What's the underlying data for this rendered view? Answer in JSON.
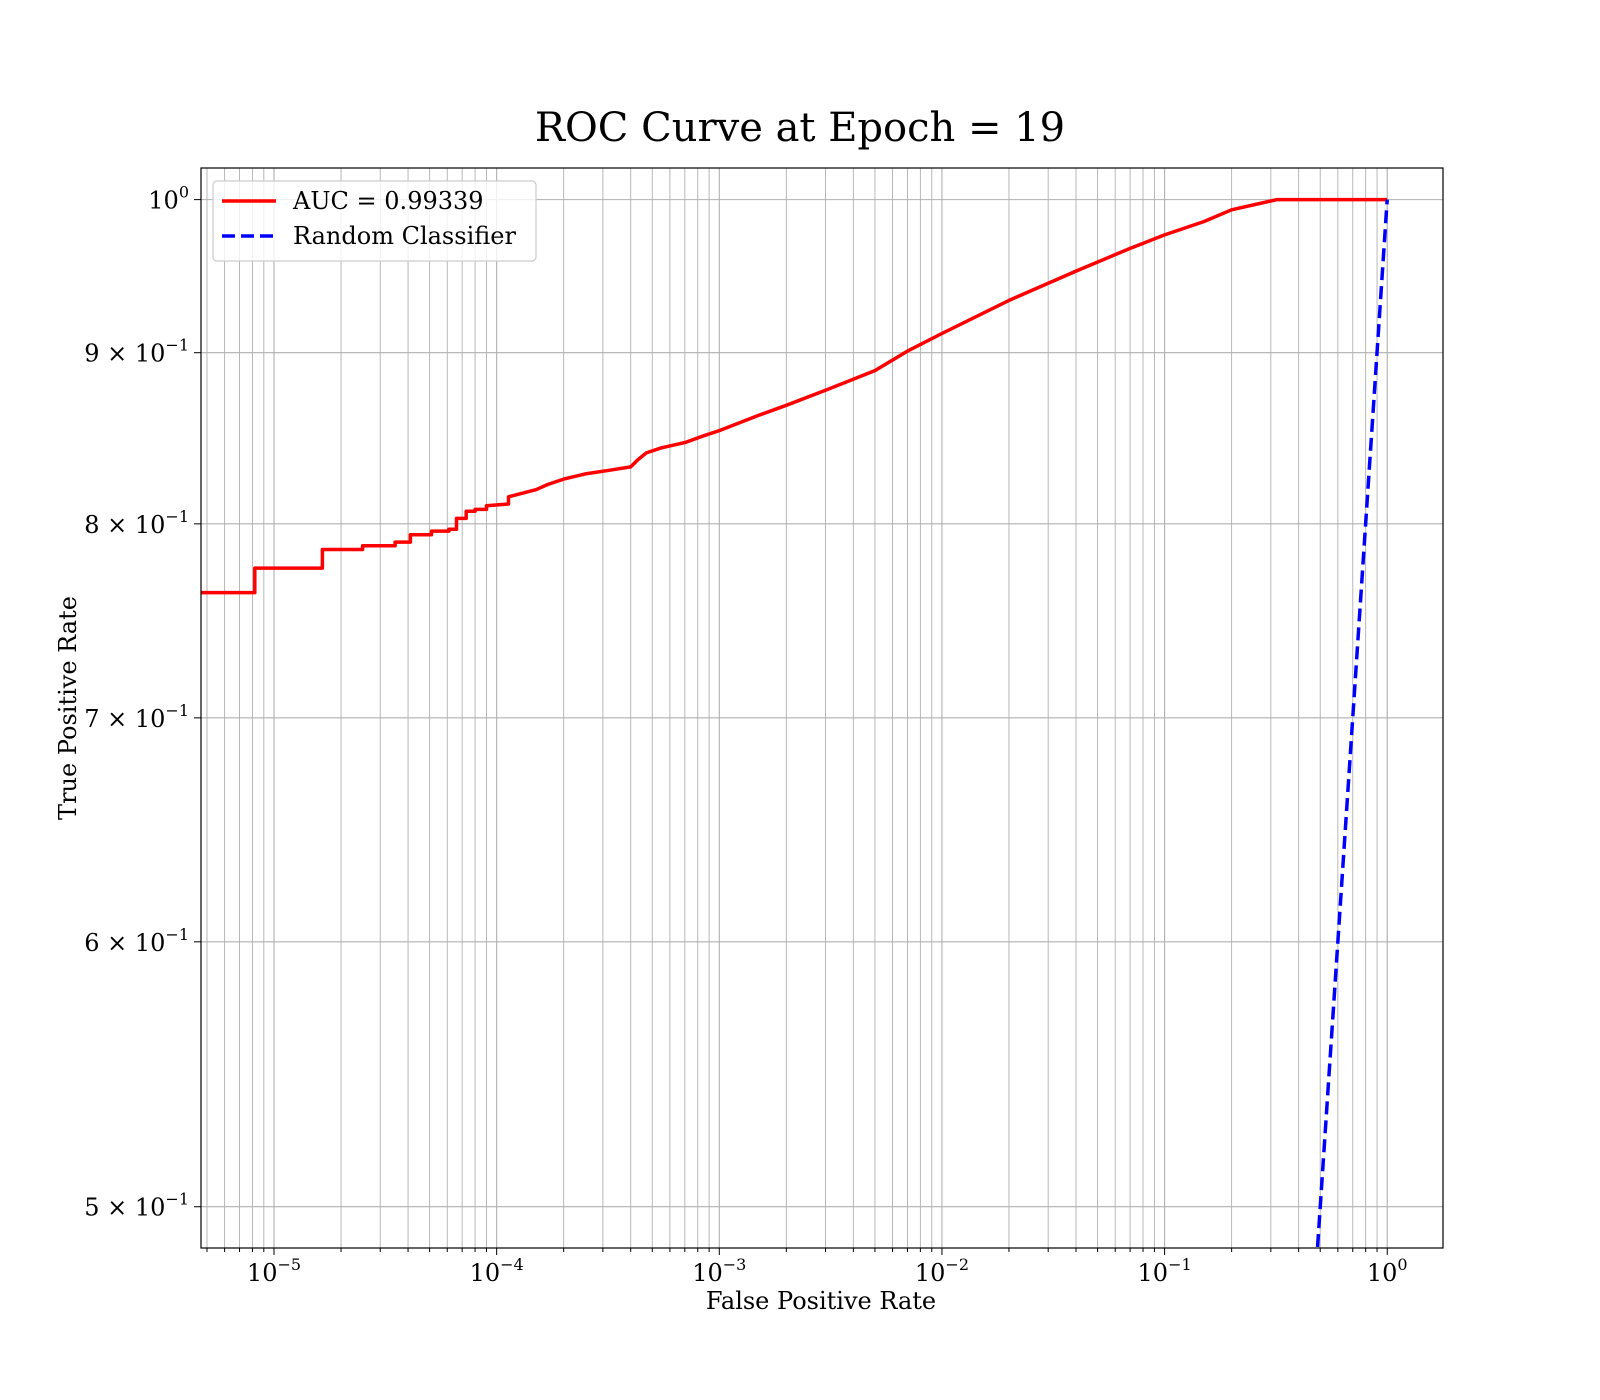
{
  "chart_data": {
    "type": "line",
    "title": "ROC Curve at Epoch = 19",
    "xlabel": "False Positive Rate",
    "ylabel": "True Positive Rate",
    "xscale": "log",
    "yscale": "log",
    "xlim": [
      4.7e-06,
      1.78
    ],
    "ylim": [
      0.486,
      1.022
    ],
    "grid": true,
    "grid_minor": true,
    "legend_position": "top-left",
    "x_ticks": [
      {
        "value": 1e-05,
        "base": "10",
        "exp": "−5"
      },
      {
        "value": 0.0001,
        "base": "10",
        "exp": "−4"
      },
      {
        "value": 0.001,
        "base": "10",
        "exp": "−3"
      },
      {
        "value": 0.01,
        "base": "10",
        "exp": "−2"
      },
      {
        "value": 0.1,
        "base": "10",
        "exp": "−1"
      },
      {
        "value": 1,
        "base": "10",
        "exp": "0"
      }
    ],
    "y_ticks": [
      {
        "value": 1.0,
        "base": "10",
        "exp": "0"
      },
      {
        "value": 0.9,
        "base": "9 × 10",
        "exp": "−1"
      },
      {
        "value": 0.8,
        "base": "8 × 10",
        "exp": "−1"
      },
      {
        "value": 0.7,
        "base": "7 × 10",
        "exp": "−1"
      },
      {
        "value": 0.6,
        "base": "6 × 10",
        "exp": "−1"
      },
      {
        "value": 0.5,
        "base": "5 × 10",
        "exp": "−1"
      }
    ],
    "series": [
      {
        "name": "AUC = 0.99339",
        "color": "#ff0000",
        "style": "solid",
        "points": [
          [
            4.7e-06,
            0.763
          ],
          [
            8.2e-06,
            0.763
          ],
          [
            8.2e-06,
            0.776
          ],
          [
            1.65e-05,
            0.776
          ],
          [
            1.65e-05,
            0.786
          ],
          [
            2.5e-05,
            0.786
          ],
          [
            2.5e-05,
            0.788
          ],
          [
            3.5e-05,
            0.788
          ],
          [
            3.5e-05,
            0.79
          ],
          [
            4.1e-05,
            0.79
          ],
          [
            4.1e-05,
            0.794
          ],
          [
            5.1e-05,
            0.794
          ],
          [
            5.1e-05,
            0.796
          ],
          [
            6.1e-05,
            0.796
          ],
          [
            6.1e-05,
            0.797
          ],
          [
            6.6e-05,
            0.797
          ],
          [
            6.6e-05,
            0.803
          ],
          [
            7.3e-05,
            0.803
          ],
          [
            7.3e-05,
            0.807
          ],
          [
            8e-05,
            0.807
          ],
          [
            8e-05,
            0.808
          ],
          [
            9e-05,
            0.808
          ],
          [
            9e-05,
            0.81
          ],
          [
            0.000113,
            0.811
          ],
          [
            0.000113,
            0.815
          ],
          [
            0.00015,
            0.819
          ],
          [
            0.00017,
            0.822
          ],
          [
            0.0002,
            0.825
          ],
          [
            0.00025,
            0.828
          ],
          [
            0.00032,
            0.83
          ],
          [
            0.0004,
            0.832
          ],
          [
            0.00043,
            0.836
          ],
          [
            0.00047,
            0.84
          ],
          [
            0.00055,
            0.843
          ],
          [
            0.0007,
            0.846
          ],
          [
            0.00085,
            0.85
          ],
          [
            0.001,
            0.853
          ],
          [
            0.0015,
            0.862
          ],
          [
            0.002,
            0.868
          ],
          [
            0.003,
            0.877
          ],
          [
            0.005,
            0.889
          ],
          [
            0.007,
            0.901
          ],
          [
            0.01,
            0.912
          ],
          [
            0.02,
            0.933
          ],
          [
            0.04,
            0.952
          ],
          [
            0.07,
            0.967
          ],
          [
            0.1,
            0.976
          ],
          [
            0.15,
            0.985
          ],
          [
            0.2,
            0.993
          ],
          [
            0.32,
            1.0
          ],
          [
            1.0,
            1.0
          ]
        ]
      },
      {
        "name": "Random Classifier",
        "color": "#0000ff",
        "style": "dashed",
        "points": [
          [
            0.48,
            0.48
          ],
          [
            1.0,
            1.0
          ]
        ]
      }
    ]
  }
}
